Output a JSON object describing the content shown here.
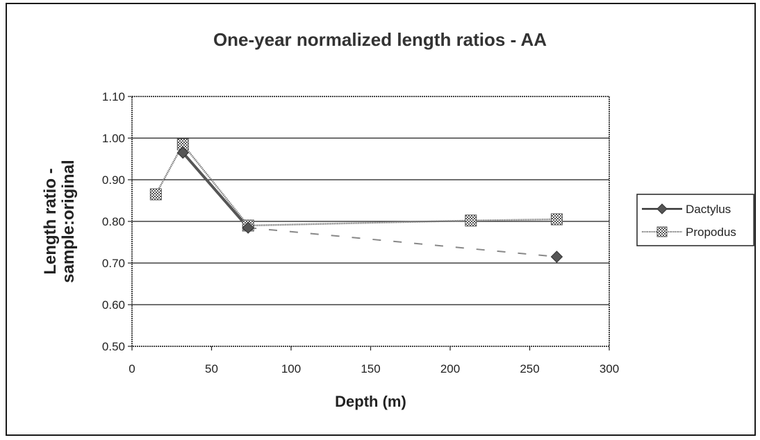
{
  "chart_data": {
    "type": "line",
    "title": "One-year normalized length ratios - AA",
    "xlabel": "Depth (m)",
    "ylabel": [
      "Length ratio -",
      "sample:original"
    ],
    "xlim": [
      0,
      300
    ],
    "ylim": [
      0.5,
      1.1
    ],
    "x_ticks": [
      0,
      50,
      100,
      150,
      200,
      250,
      300
    ],
    "y_ticks": [
      "0.50",
      "0.60",
      "0.70",
      "0.80",
      "0.90",
      "1.00",
      "1.10"
    ],
    "grid": "horizontal",
    "legend_position": "right",
    "series": [
      {
        "name": "Dactylus",
        "marker": "diamond",
        "color": "#555555",
        "points": [
          [
            32,
            0.965
          ],
          [
            73,
            0.785
          ]
        ],
        "dashed_points": [
          [
            73,
            0.785
          ],
          [
            267,
            0.715
          ]
        ]
      },
      {
        "name": "Propodus",
        "marker": "checkered-square",
        "color": "#777777",
        "points": [
          [
            15,
            0.865
          ],
          [
            32,
            0.985
          ],
          [
            73,
            0.79
          ],
          [
            213,
            0.802
          ],
          [
            267,
            0.805
          ]
        ]
      }
    ],
    "trailing_marker": {
      "series": "Dactylus",
      "x": 267,
      "y": 0.715
    }
  },
  "colors": {
    "frame": "#1a1a1a",
    "grid": "#1a1a1a",
    "dactylus": "#555555",
    "propodus": "#777777"
  }
}
